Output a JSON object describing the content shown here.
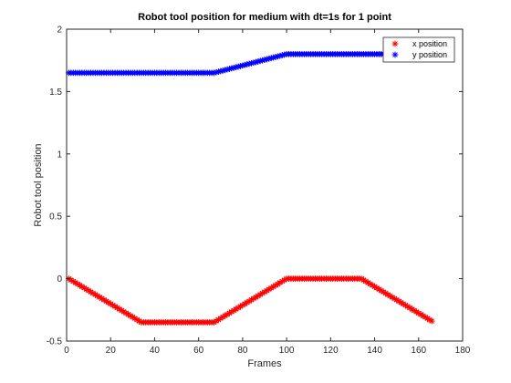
{
  "chart_data": {
    "type": "scatter",
    "title": "Robot tool position for medium with dt=1s for 1 point",
    "xlabel": "Frames",
    "ylabel": "Robot tool position",
    "xlim": [
      0,
      180
    ],
    "ylim": [
      -0.5,
      2
    ],
    "xticks": [
      "0",
      "20",
      "40",
      "60",
      "80",
      "100",
      "120",
      "140",
      "160",
      "180"
    ],
    "yticks": [
      "-0.5",
      "0",
      "0.5",
      "1",
      "1.5",
      "2"
    ],
    "marker": "*",
    "grid": false,
    "legend_position": "top-right",
    "series": [
      {
        "name": "x position",
        "color": "#ff0000",
        "segments": [
          {
            "x_start": 1,
            "x_end": 34,
            "y_start": 0.0,
            "y_end": -0.35
          },
          {
            "x_start": 34,
            "x_end": 67,
            "y_start": -0.35,
            "y_end": -0.35
          },
          {
            "x_start": 67,
            "x_end": 100,
            "y_start": -0.35,
            "y_end": 0.0
          },
          {
            "x_start": 100,
            "x_end": 134,
            "y_start": 0.0,
            "y_end": 0.0
          },
          {
            "x_start": 134,
            "x_end": 166,
            "y_start": 0.0,
            "y_end": -0.34
          }
        ]
      },
      {
        "name": "y position",
        "color": "#0000ff",
        "segments": [
          {
            "x_start": 1,
            "x_end": 67,
            "y_start": 1.65,
            "y_end": 1.65
          },
          {
            "x_start": 67,
            "x_end": 100,
            "y_start": 1.65,
            "y_end": 1.8
          },
          {
            "x_start": 100,
            "x_end": 166,
            "y_start": 1.8,
            "y_end": 1.8
          }
        ]
      }
    ]
  }
}
